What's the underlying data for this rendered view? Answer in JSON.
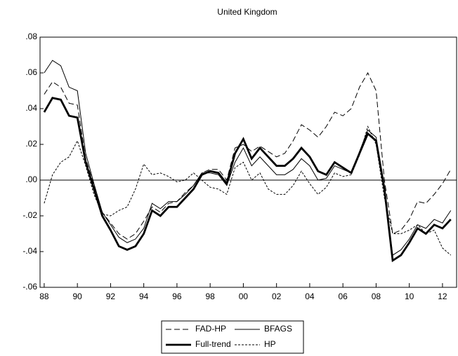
{
  "chart_data": {
    "type": "line",
    "title": "United Kingdom",
    "x": [
      1988,
      1988.5,
      1989,
      1989.5,
      1990,
      1990.5,
      1991,
      1991.5,
      1992,
      1992.5,
      1993,
      1993.5,
      1994,
      1994.5,
      1995,
      1995.5,
      1996,
      1996.5,
      1997,
      1997.5,
      1998,
      1998.5,
      1999,
      1999.5,
      2000,
      2000.5,
      2001,
      2001.5,
      2002,
      2002.5,
      2003,
      2003.5,
      2004,
      2004.5,
      2005,
      2005.5,
      2006,
      2006.5,
      2007,
      2007.5,
      2008,
      2008.5,
      2009,
      2009.5,
      2010,
      2010.5,
      2011,
      2011.5,
      2012,
      2012.5
    ],
    "series": [
      {
        "name": "FAD-HP",
        "color": "#000000",
        "style": "dashed",
        "values": [
          0.048,
          0.055,
          0.052,
          0.043,
          0.042,
          0.012,
          -0.003,
          -0.018,
          -0.024,
          -0.03,
          -0.033,
          -0.03,
          -0.023,
          -0.015,
          -0.018,
          -0.013,
          -0.012,
          -0.007,
          -0.003,
          0.004,
          0.006,
          0.006,
          0.0,
          0.018,
          0.02,
          0.016,
          0.019,
          0.016,
          0.013,
          0.015,
          0.022,
          0.031,
          0.028,
          0.024,
          0.03,
          0.038,
          0.036,
          0.04,
          0.052,
          0.06,
          0.05,
          0.0,
          -0.03,
          -0.028,
          -0.022,
          -0.012,
          -0.013,
          -0.008,
          -0.002,
          0.006
        ]
      },
      {
        "name": "BFAGS",
        "color": "#000000",
        "style": "solid",
        "values": [
          0.06,
          0.067,
          0.064,
          0.052,
          0.05,
          0.015,
          -0.002,
          -0.018,
          -0.025,
          -0.032,
          -0.035,
          -0.033,
          -0.027,
          -0.013,
          -0.016,
          -0.012,
          -0.012,
          -0.008,
          -0.003,
          0.004,
          0.004,
          0.003,
          -0.003,
          0.01,
          0.018,
          0.008,
          0.013,
          0.008,
          0.003,
          0.003,
          0.006,
          0.012,
          0.008,
          0.0,
          0.001,
          0.008,
          0.006,
          0.004,
          0.016,
          0.028,
          0.024,
          -0.006,
          -0.042,
          -0.039,
          -0.033,
          -0.025,
          -0.027,
          -0.022,
          -0.024,
          -0.017
        ]
      },
      {
        "name": "Full-trend",
        "color": "#000000",
        "style": "bold",
        "values": [
          0.038,
          0.046,
          0.045,
          0.036,
          0.035,
          0.01,
          -0.005,
          -0.02,
          -0.028,
          -0.037,
          -0.039,
          -0.037,
          -0.03,
          -0.017,
          -0.02,
          -0.015,
          -0.015,
          -0.01,
          -0.005,
          0.003,
          0.005,
          0.004,
          -0.002,
          0.015,
          0.023,
          0.012,
          0.018,
          0.013,
          0.008,
          0.008,
          0.012,
          0.018,
          0.013,
          0.005,
          0.003,
          0.01,
          0.007,
          0.004,
          0.015,
          0.026,
          0.022,
          -0.005,
          -0.045,
          -0.042,
          -0.035,
          -0.027,
          -0.03,
          -0.025,
          -0.027,
          -0.022
        ]
      },
      {
        "name": "HP",
        "color": "#000000",
        "style": "dotted",
        "values": [
          -0.013,
          0.003,
          0.01,
          0.013,
          0.022,
          0.008,
          -0.008,
          -0.019,
          -0.02,
          -0.017,
          -0.015,
          -0.005,
          0.009,
          0.003,
          0.004,
          0.002,
          -0.001,
          0.0,
          0.004,
          0.0,
          -0.004,
          -0.005,
          -0.008,
          0.007,
          0.01,
          0.0,
          0.004,
          -0.005,
          -0.008,
          -0.008,
          -0.003,
          0.005,
          -0.002,
          -0.008,
          -0.004,
          0.004,
          0.002,
          0.003,
          0.014,
          0.03,
          0.02,
          -0.01,
          -0.03,
          -0.03,
          -0.028,
          -0.025,
          -0.03,
          -0.028,
          -0.038,
          -0.042
        ]
      }
    ],
    "xlim": [
      1987.75,
      2012.85
    ],
    "xticks": [
      {
        "value": 1988,
        "label": "88"
      },
      {
        "value": 1990,
        "label": "90"
      },
      {
        "value": 1992,
        "label": "92"
      },
      {
        "value": 1994,
        "label": "94"
      },
      {
        "value": 1996,
        "label": "96"
      },
      {
        "value": 1998,
        "label": "98"
      },
      {
        "value": 2000,
        "label": "00"
      },
      {
        "value": 2002,
        "label": "02"
      },
      {
        "value": 2004,
        "label": "04"
      },
      {
        "value": 2006,
        "label": "06"
      },
      {
        "value": 2008,
        "label": "08"
      },
      {
        "value": 2010,
        "label": "10"
      },
      {
        "value": 2012,
        "label": "12"
      }
    ],
    "ylim": [
      -0.06,
      0.08
    ],
    "yticks": [
      {
        "value": -0.06,
        "label": "-.06"
      },
      {
        "value": -0.04,
        "label": "-.04"
      },
      {
        "value": -0.02,
        "label": "-.02"
      },
      {
        "value": 0,
        "label": ".00"
      },
      {
        "value": 0.02,
        "label": ".02"
      },
      {
        "value": 0.04,
        "label": ".04"
      },
      {
        "value": 0.06,
        "label": ".06"
      },
      {
        "value": 0.08,
        "label": ".08"
      }
    ],
    "zero_line": true,
    "legend": "bottom"
  }
}
